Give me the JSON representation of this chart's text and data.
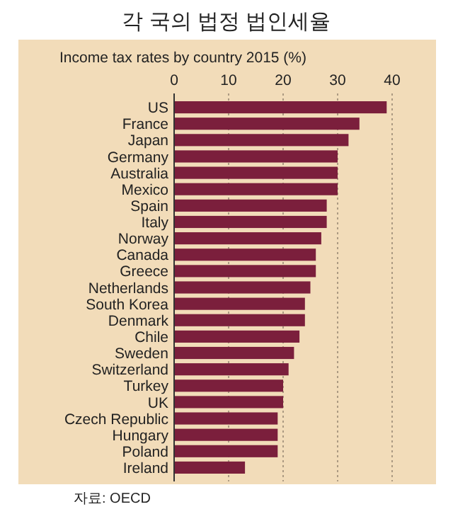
{
  "chart_data": {
    "type": "bar",
    "orientation": "horizontal",
    "title": "각 국의 법정 법인세율",
    "subtitle": "Income tax rates by country 2015 (%)",
    "categories": [
      "US",
      "France",
      "Japan",
      "Germany",
      "Australia",
      "Mexico",
      "Spain",
      "Italy",
      "Norway",
      "Canada",
      "Greece",
      "Netherlands",
      "South Korea",
      "Denmark",
      "Chile",
      "Sweden",
      "Switzerland",
      "Turkey",
      "UK",
      "Czech Republic",
      "Hungary",
      "Poland",
      "Ireland"
    ],
    "values": [
      39,
      34,
      32,
      30,
      30,
      30,
      28,
      28,
      27,
      26,
      26,
      25,
      24,
      24,
      23,
      22,
      21,
      20,
      20,
      19,
      19,
      19,
      13
    ],
    "color": "#7b1f3c",
    "xlim": [
      0,
      40
    ],
    "xticks": [
      0,
      10,
      20,
      30,
      40
    ],
    "grid": "x",
    "annotations": [
      "자료: OECD"
    ]
  }
}
